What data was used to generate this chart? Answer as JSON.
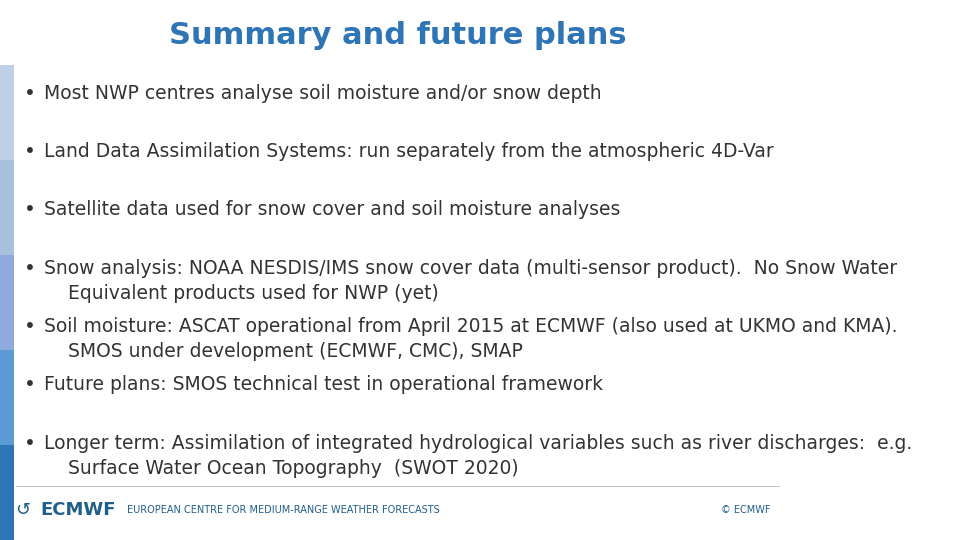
{
  "title": "Summary and future plans",
  "title_color": "#2E75B6",
  "title_fontsize": 22,
  "bg_color": "#FFFFFF",
  "bullet_color": "#333333",
  "bullet_fontsize": 13.5,
  "bullet_font": "DejaVu Sans",
  "bullets": [
    {
      "text": "Most NWP centres analyse soil moisture and/or snow depth"
    },
    {
      "text": "Land Data Assimilation Systems: run separately from the atmospheric 4D-Var"
    },
    {
      "text": "Satellite data used for snow cover and soil moisture analyses"
    },
    {
      "text": "Snow analysis: NOAA NESDIS/IMS snow cover data (multi-sensor product).  No Snow Water\n    Equivalent products used for NWP (yet)"
    },
    {
      "text": "Soil moisture: ASCAT operational from April 2015 at ECMWF (also used at UKMO and KMA).\n    SMOS under development (ECMWF, CMC), SMAP"
    },
    {
      "text": "Future plans: SMOS technical test in operational framework"
    },
    {
      "text": "Longer term: Assimilation of integrated hydrological variables such as river discharges:  e.g.\n    Surface Water Ocean Topography  (SWOT 2020)"
    }
  ],
  "left_bar_colors": [
    "#2E75B6",
    "#5B9BD5",
    "#8FAADC",
    "#A9C0DC",
    "#BDD0E8"
  ],
  "footer_text_left": "EUROPEAN CENTRE FOR MEDIUM-RANGE WEATHER FORECASTS",
  "footer_text_right": "© ECMWF",
  "footer_logo_text": "ECMWF",
  "footer_color": "#1F5F8B",
  "footer_fontsize": 7
}
